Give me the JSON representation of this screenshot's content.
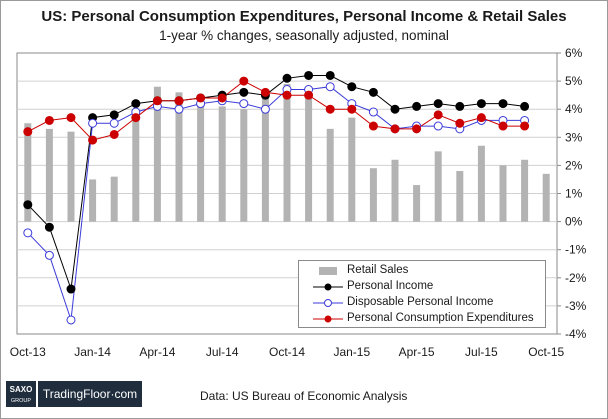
{
  "title": "US: Personal Consumption Expenditures, Personal Income & Retail Sales",
  "subtitle": "1-year % changes, seasonally adjusted, nominal",
  "source": "Data: US Bureau of Economic Analysis",
  "logo": {
    "top": "SAXO",
    "bottom": "GROUP",
    "brand": "TradingFloor·com"
  },
  "colors": {
    "retail": "#b3b3b3",
    "income": "#000000",
    "disposable": "#3b3bd9",
    "pce": "#cc0000",
    "grid": "#d0d0d0"
  },
  "chart_data": {
    "type": "bar+line",
    "title": "US: Personal Consumption Expenditures, Personal Income & Retail Sales",
    "subtitle": "1-year % changes, seasonally adjusted, nominal",
    "categories": [
      "Oct-13",
      "Nov-13",
      "Dec-13",
      "Jan-14",
      "Feb-14",
      "Mar-14",
      "Apr-14",
      "May-14",
      "Jun-14",
      "Jul-14",
      "Aug-14",
      "Sep-14",
      "Oct-14",
      "Nov-14",
      "Dec-14",
      "Jan-15",
      "Feb-15",
      "Mar-15",
      "Apr-15",
      "May-15",
      "Jun-15",
      "Jul-15",
      "Aug-15",
      "Sep-15",
      "Oct-15"
    ],
    "x_tick_labels": [
      "Oct-13",
      "Jan-14",
      "Apr-14",
      "Jul-14",
      "Oct-14",
      "Jan-15",
      "Apr-15",
      "Jul-15",
      "Oct-15"
    ],
    "y_tick_labels": [
      "6%",
      "5%",
      "4%",
      "3%",
      "2%",
      "1%",
      "0%",
      "-1%",
      "-2%",
      "-3%",
      "-4%"
    ],
    "ylim": [
      -4,
      6
    ],
    "y_axis_side": "right",
    "grid": true,
    "legend_position": "bottom-right",
    "series": [
      {
        "name": "Retail Sales",
        "kind": "bar",
        "values": [
          3.5,
          3.3,
          3.2,
          1.5,
          1.6,
          3.7,
          4.8,
          4.6,
          4.3,
          4.1,
          4.0,
          4.7,
          4.9,
          4.6,
          3.3,
          3.7,
          1.9,
          2.2,
          1.3,
          2.5,
          1.8,
          2.7,
          2.0,
          2.2,
          1.7
        ]
      },
      {
        "name": "Personal Income",
        "kind": "line",
        "values": [
          0.6,
          -0.2,
          -2.4,
          3.7,
          3.8,
          4.2,
          4.3,
          4.3,
          4.4,
          4.5,
          4.6,
          4.5,
          5.1,
          5.2,
          5.2,
          4.8,
          4.6,
          4.0,
          4.1,
          4.2,
          4.1,
          4.2,
          4.2,
          4.1,
          null
        ]
      },
      {
        "name": "Disposable Personal Income",
        "kind": "line",
        "values": [
          -0.4,
          -1.2,
          -3.5,
          3.5,
          3.5,
          3.9,
          4.1,
          4.0,
          4.2,
          4.3,
          4.2,
          4.0,
          4.7,
          4.7,
          4.8,
          4.2,
          3.9,
          3.3,
          3.4,
          3.4,
          3.3,
          3.6,
          3.6,
          3.6,
          null
        ]
      },
      {
        "name": "Personal Consumption Expenditures",
        "kind": "line",
        "values": [
          3.2,
          3.6,
          3.7,
          2.9,
          3.1,
          3.7,
          4.3,
          4.3,
          4.4,
          4.4,
          5.0,
          4.6,
          4.5,
          4.5,
          4.0,
          4.0,
          3.4,
          3.3,
          3.3,
          3.8,
          3.5,
          3.7,
          3.4,
          3.4,
          null
        ]
      }
    ]
  }
}
